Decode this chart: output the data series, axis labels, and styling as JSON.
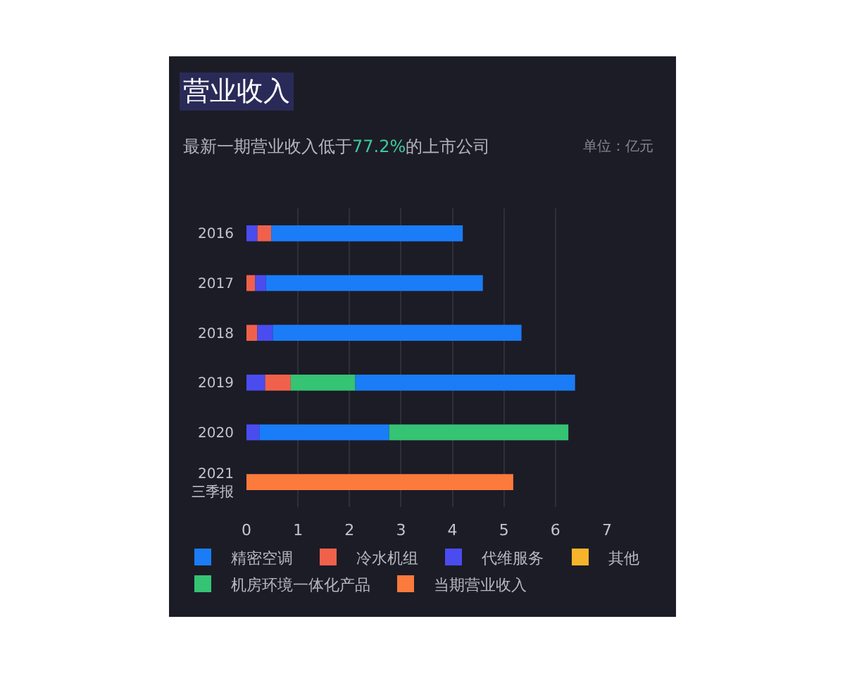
{
  "chart_data": {
    "type": "bar",
    "orientation": "horizontal",
    "title": "营业收入",
    "subtitle": "最新一期营业收入低于77.2%的上市公司",
    "annotations": [
      "单位：亿元"
    ],
    "categories": [
      "2016",
      "2017",
      "2018",
      "2019",
      "2020",
      "2021\n三季报"
    ],
    "series": [
      {
        "name": "精密空调",
        "color": "#1a7cf7",
        "values": [
          3.72,
          4.21,
          4.83,
          4.27,
          2.52,
          null
        ],
        "base": [
          0.48,
          0.38,
          0.51,
          2.11,
          0.25,
          null
        ]
      },
      {
        "name": "冷水机组",
        "color": "#f0614c",
        "values": [
          0.27,
          0.17,
          0.21,
          0.5,
          null,
          null
        ],
        "base": [
          0.21,
          0,
          0,
          0.36,
          null,
          null
        ]
      },
      {
        "name": "代维服务",
        "color": "#4a4cf0",
        "values": [
          0.21,
          0.21,
          0.3,
          0.36,
          0.25,
          null
        ],
        "base": [
          0,
          0.17,
          0.21,
          0,
          0,
          null
        ]
      },
      {
        "name": "其他",
        "color": "#f6b42b",
        "values": [
          null,
          null,
          null,
          null,
          null,
          null
        ],
        "base": [
          null,
          null,
          null,
          null,
          null,
          null
        ]
      },
      {
        "name": "机房环境一体化产品",
        "color": "#35c374",
        "values": [
          null,
          null,
          null,
          1.25,
          3.48,
          null
        ],
        "base": [
          null,
          null,
          null,
          0.86,
          2.77,
          null
        ]
      },
      {
        "name": "当期营业收入",
        "color": "#fb7a3c",
        "values": [
          null,
          null,
          null,
          null,
          null,
          5.18
        ],
        "base": [
          null,
          null,
          null,
          null,
          null,
          0
        ]
      }
    ],
    "xlim": [
      0,
      7
    ],
    "xticks": [
      0,
      1,
      2,
      3,
      4,
      5,
      6,
      7
    ],
    "grid": "x",
    "legend": "bottom left"
  }
}
